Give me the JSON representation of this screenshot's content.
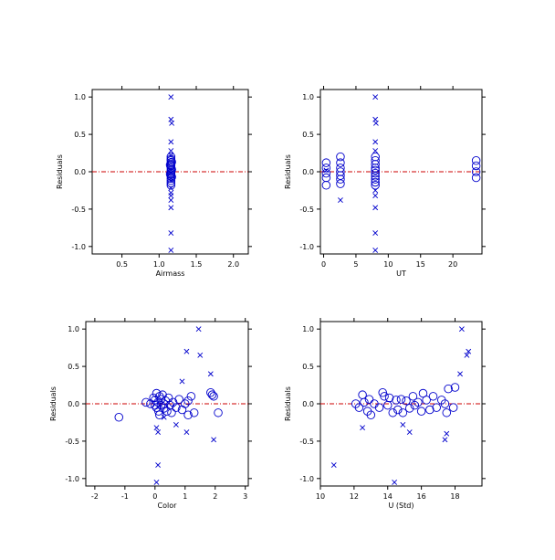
{
  "colors": {
    "marker": "#0000cc",
    "zero_line": "#cc0000",
    "axis": "#000000"
  },
  "chart_data": [
    {
      "type": "scatter",
      "xlabel": "Airmass",
      "ylabel": "Residuals",
      "xlim": [
        0.1,
        2.2
      ],
      "ylim": [
        -1.1,
        1.1
      ],
      "xticks": [
        0.5,
        1.0,
        1.5,
        2.0
      ],
      "xtick_labels": [
        "0.5",
        "1.0",
        "1.5",
        "2.0"
      ],
      "yticks": [
        -1.0,
        -0.5,
        0.0,
        0.5,
        1.0
      ],
      "ytick_labels": [
        "-1.0",
        "-0.5",
        "0.0",
        "0.5",
        "1.0"
      ],
      "reference_line_y": 0,
      "series": [
        {
          "marker": "circle",
          "points": [
            [
              1.16,
              0.2
            ],
            [
              1.16,
              0.17
            ],
            [
              1.16,
              0.15
            ],
            [
              1.16,
              0.12
            ],
            [
              1.16,
              0.1
            ],
            [
              1.16,
              0.08
            ],
            [
              1.16,
              0.05
            ],
            [
              1.16,
              0.02
            ],
            [
              1.16,
              0.0
            ],
            [
              1.16,
              -0.02
            ],
            [
              1.16,
              -0.04
            ],
            [
              1.16,
              -0.06
            ],
            [
              1.16,
              -0.09
            ],
            [
              1.16,
              -0.12
            ],
            [
              1.16,
              -0.15
            ],
            [
              1.16,
              -0.18
            ],
            [
              1.17,
              0.13
            ],
            [
              1.17,
              0.03
            ],
            [
              1.17,
              -0.07
            ],
            [
              1.15,
              -0.03
            ],
            [
              1.15,
              0.09
            ]
          ]
        },
        {
          "marker": "x",
          "points": [
            [
              1.16,
              1.0
            ],
            [
              1.16,
              0.7
            ],
            [
              1.17,
              0.65
            ],
            [
              1.16,
              0.4
            ],
            [
              1.16,
              0.28
            ],
            [
              1.16,
              0.22
            ],
            [
              1.16,
              -0.22
            ],
            [
              1.16,
              -0.28
            ],
            [
              1.16,
              -0.32
            ],
            [
              1.16,
              -0.38
            ],
            [
              1.16,
              -0.48
            ],
            [
              1.16,
              -0.82
            ],
            [
              1.16,
              -1.05
            ]
          ]
        }
      ]
    },
    {
      "type": "scatter",
      "xlabel": "UT",
      "ylabel": "Residuals",
      "xlim": [
        -0.5,
        24.5
      ],
      "ylim": [
        -1.1,
        1.1
      ],
      "xticks": [
        0,
        5,
        10,
        15,
        20
      ],
      "xtick_labels": [
        "0",
        "5",
        "10",
        "15",
        "20"
      ],
      "yticks": [
        -1.0,
        -0.5,
        0.0,
        0.5,
        1.0
      ],
      "ytick_labels": [
        "-1.0",
        "-0.5",
        "0.0",
        "0.5",
        "1.0"
      ],
      "reference_line_y": 0,
      "series": [
        {
          "marker": "circle",
          "points": [
            [
              0.4,
              0.12
            ],
            [
              0.4,
              0.05
            ],
            [
              0.4,
              -0.02
            ],
            [
              0.4,
              -0.08
            ],
            [
              0.4,
              -0.18
            ],
            [
              2.6,
              0.2
            ],
            [
              2.6,
              0.12
            ],
            [
              2.6,
              0.05
            ],
            [
              2.6,
              0.0
            ],
            [
              2.6,
              -0.05
            ],
            [
              2.6,
              -0.1
            ],
            [
              2.6,
              -0.16
            ],
            [
              8.0,
              0.2
            ],
            [
              8.0,
              0.15
            ],
            [
              8.0,
              0.1
            ],
            [
              8.0,
              0.05
            ],
            [
              8.0,
              0.02
            ],
            [
              8.0,
              -0.02
            ],
            [
              8.0,
              -0.06
            ],
            [
              8.0,
              -0.1
            ],
            [
              8.0,
              -0.14
            ],
            [
              8.0,
              -0.18
            ],
            [
              23.6,
              0.15
            ],
            [
              23.6,
              0.08
            ],
            [
              23.6,
              0.0
            ],
            [
              23.6,
              -0.08
            ]
          ]
        },
        {
          "marker": "x",
          "points": [
            [
              0.4,
              0.02
            ],
            [
              2.6,
              -0.38
            ],
            [
              8.0,
              1.0
            ],
            [
              8.0,
              0.7
            ],
            [
              8.1,
              0.65
            ],
            [
              8.0,
              0.4
            ],
            [
              8.0,
              0.28
            ],
            [
              8.0,
              -0.25
            ],
            [
              8.0,
              -0.32
            ],
            [
              8.0,
              -0.48
            ],
            [
              8.0,
              -0.82
            ],
            [
              8.0,
              -1.05
            ]
          ]
        }
      ]
    },
    {
      "type": "scatter",
      "xlabel": "Color",
      "ylabel": "Residuals",
      "xlim": [
        -2.3,
        3.1
      ],
      "ylim": [
        -1.1,
        1.1
      ],
      "xticks": [
        -2,
        -1,
        0,
        1,
        2,
        3
      ],
      "xtick_labels": [
        "-2",
        "-1",
        "0",
        "1",
        "2",
        "3"
      ],
      "yticks": [
        -1.0,
        -0.5,
        0.0,
        0.5,
        1.0
      ],
      "ytick_labels": [
        "-1.0",
        "-0.5",
        "0.0",
        "0.5",
        "1.0"
      ],
      "reference_line_y": 0,
      "series": [
        {
          "marker": "circle",
          "points": [
            [
              -1.2,
              -0.18
            ],
            [
              -0.3,
              0.02
            ],
            [
              -0.15,
              0.0
            ],
            [
              -0.05,
              0.08
            ],
            [
              0.0,
              0.05
            ],
            [
              0.05,
              0.14
            ],
            [
              0.05,
              -0.05
            ],
            [
              0.1,
              0.02
            ],
            [
              0.12,
              -0.1
            ],
            [
              0.15,
              0.1
            ],
            [
              0.2,
              -0.02
            ],
            [
              0.2,
              0.06
            ],
            [
              0.25,
              0.12
            ],
            [
              0.3,
              -0.06
            ],
            [
              0.3,
              0.0
            ],
            [
              0.35,
              0.04
            ],
            [
              0.4,
              -0.1
            ],
            [
              0.45,
              0.08
            ],
            [
              0.5,
              -0.02
            ],
            [
              0.55,
              -0.12
            ],
            [
              0.6,
              0.02
            ],
            [
              0.7,
              -0.05
            ],
            [
              0.8,
              0.06
            ],
            [
              0.9,
              -0.08
            ],
            [
              1.0,
              0.0
            ],
            [
              1.1,
              0.04
            ],
            [
              1.1,
              -0.15
            ],
            [
              1.2,
              0.1
            ],
            [
              1.3,
              -0.12
            ],
            [
              1.85,
              0.15
            ],
            [
              1.9,
              0.12
            ],
            [
              1.95,
              0.1
            ],
            [
              2.1,
              -0.12
            ],
            [
              0.0,
              -0.02
            ],
            [
              0.15,
              -0.15
            ]
          ]
        },
        {
          "marker": "x",
          "points": [
            [
              0.05,
              -0.32
            ],
            [
              0.1,
              -0.38
            ],
            [
              0.1,
              -0.82
            ],
            [
              0.05,
              -1.05
            ],
            [
              1.05,
              0.7
            ],
            [
              1.45,
              1.0
            ],
            [
              1.5,
              0.65
            ],
            [
              1.85,
              0.4
            ],
            [
              1.95,
              -0.48
            ],
            [
              1.05,
              -0.38
            ],
            [
              0.7,
              -0.28
            ],
            [
              0.3,
              -0.18
            ],
            [
              0.9,
              0.3
            ]
          ]
        }
      ]
    },
    {
      "type": "scatter",
      "xlabel": "U (Std)",
      "ylabel": "Residuals",
      "xlim": [
        10,
        19.6
      ],
      "ylim": [
        -1.1,
        1.1
      ],
      "xticks": [
        10,
        12,
        14,
        16,
        18
      ],
      "xtick_labels": [
        "10",
        "12",
        "14",
        "16",
        "18"
      ],
      "yticks": [
        -1.0,
        -0.5,
        0.0,
        0.5,
        1.0
      ],
      "ytick_labels": [
        "-1.0",
        "-0.5",
        "0.0",
        "0.5",
        "1.0"
      ],
      "reference_line_y": 0,
      "series": [
        {
          "marker": "circle",
          "points": [
            [
              12.1,
              0.0
            ],
            [
              12.3,
              -0.05
            ],
            [
              12.5,
              0.12
            ],
            [
              12.6,
              0.02
            ],
            [
              12.8,
              -0.1
            ],
            [
              12.9,
              0.06
            ],
            [
              13.0,
              -0.15
            ],
            [
              13.2,
              0.0
            ],
            [
              13.5,
              -0.05
            ],
            [
              13.7,
              0.15
            ],
            [
              13.8,
              0.1
            ],
            [
              14.0,
              -0.02
            ],
            [
              14.1,
              0.08
            ],
            [
              14.3,
              -0.12
            ],
            [
              14.5,
              0.05
            ],
            [
              14.6,
              -0.08
            ],
            [
              14.8,
              0.06
            ],
            [
              14.9,
              -0.12
            ],
            [
              15.1,
              0.04
            ],
            [
              15.3,
              -0.06
            ],
            [
              15.5,
              0.1
            ],
            [
              15.6,
              -0.02
            ],
            [
              15.8,
              0.02
            ],
            [
              16.0,
              -0.1
            ],
            [
              16.1,
              0.14
            ],
            [
              16.3,
              0.05
            ],
            [
              16.5,
              -0.08
            ],
            [
              16.7,
              0.1
            ],
            [
              16.9,
              -0.05
            ],
            [
              17.2,
              0.05
            ],
            [
              17.4,
              0.0
            ],
            [
              17.5,
              -0.12
            ],
            [
              17.6,
              0.2
            ],
            [
              17.9,
              -0.05
            ],
            [
              18.0,
              0.22
            ]
          ]
        },
        {
          "marker": "x",
          "points": [
            [
              10.8,
              -0.82
            ],
            [
              12.5,
              -0.32
            ],
            [
              14.4,
              -1.05
            ],
            [
              14.9,
              -0.28
            ],
            [
              15.3,
              -0.38
            ],
            [
              17.4,
              -0.48
            ],
            [
              17.5,
              -0.4
            ],
            [
              18.3,
              0.4
            ],
            [
              18.4,
              1.0
            ],
            [
              18.7,
              0.65
            ],
            [
              18.8,
              0.7
            ]
          ]
        }
      ]
    }
  ]
}
